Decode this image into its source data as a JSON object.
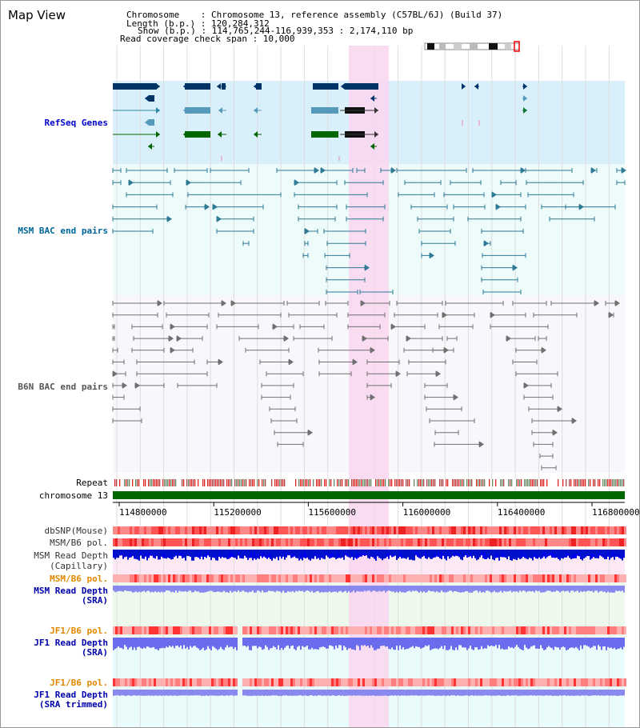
{
  "header": {
    "title": "Map View",
    "chromosome_label": "Chromosome    : Chromosome 13, reference assembly (C57BL/6J) (Build 37)",
    "length_label": "Length (b.p.) : 120,284,312",
    "show_label": "Show (b.p.) : 114,765,244-116,939,353 : 2,174,110 bp",
    "coverage_label": "Read coverage check span : 10,000"
  },
  "tracks": {
    "refseq": "RefSeq Genes",
    "msm_bac": "MSM BAC end pairs",
    "b6n_bac": "B6N BAC end pairs",
    "repeat": "Repeat",
    "chromosome": "chromosome 13",
    "dbsnp": "dbSNP(Mouse)",
    "msm_b6_pol_1": "MSM/B6 pol.",
    "msm_depth_cap_1": "MSM Read Depth",
    "msm_depth_cap_2": "(Capillary)",
    "msm_b6_pol_2": "MSM/B6 pol.",
    "msm_depth_sra_1": "MSM Read Depth",
    "msm_depth_sra_2": "(SRA)",
    "jf1_b6_pol_1": "JF1/B6 pol.",
    "jf1_depth_sra_1": "JF1 Read Depth",
    "jf1_depth_sra_2": "(SRA)",
    "jf1_b6_pol_2": "JF1/B6 pol.",
    "jf1_depth_trim_1": "JF1 Read Depth",
    "jf1_depth_trim_2": "(SRA trimmed)"
  },
  "axis": {
    "ticks": [
      "114800000",
      "115200000",
      "115600000",
      "116000000",
      "116400000",
      "116800000"
    ]
  },
  "colors": {
    "highlight": "#f9d6f0",
    "refseq_bg": "#d9f0fa",
    "refseq_label": "#0000cc",
    "msm_label": "#006699",
    "b6n_label": "#555555",
    "chromosome_bar": "#006600",
    "depth_blue": "#0000ee",
    "pol_orange": "#e08800"
  }
}
